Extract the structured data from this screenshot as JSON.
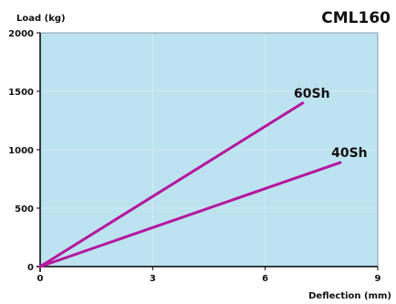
{
  "chart_data": {
    "type": "line",
    "title": "CML160",
    "xlabel": "Deflection (mm)",
    "ylabel": "Load (kg)",
    "xlim": [
      0,
      9
    ],
    "ylim": [
      0,
      2000
    ],
    "x_ticks": [
      0,
      3,
      6,
      9
    ],
    "y_ticks": [
      0,
      500,
      1000,
      1500,
      2000
    ],
    "grid": true,
    "series": [
      {
        "name": "60Sh",
        "x": [
          0,
          7
        ],
        "y": [
          0,
          1400
        ]
      },
      {
        "name": "40Sh",
        "x": [
          0,
          8
        ],
        "y": [
          0,
          890
        ]
      }
    ],
    "colors": {
      "plot_background": "#bde3f0",
      "series_line": "#b5179e",
      "grid": "#d6eaf2",
      "axis": "#000000"
    }
  }
}
